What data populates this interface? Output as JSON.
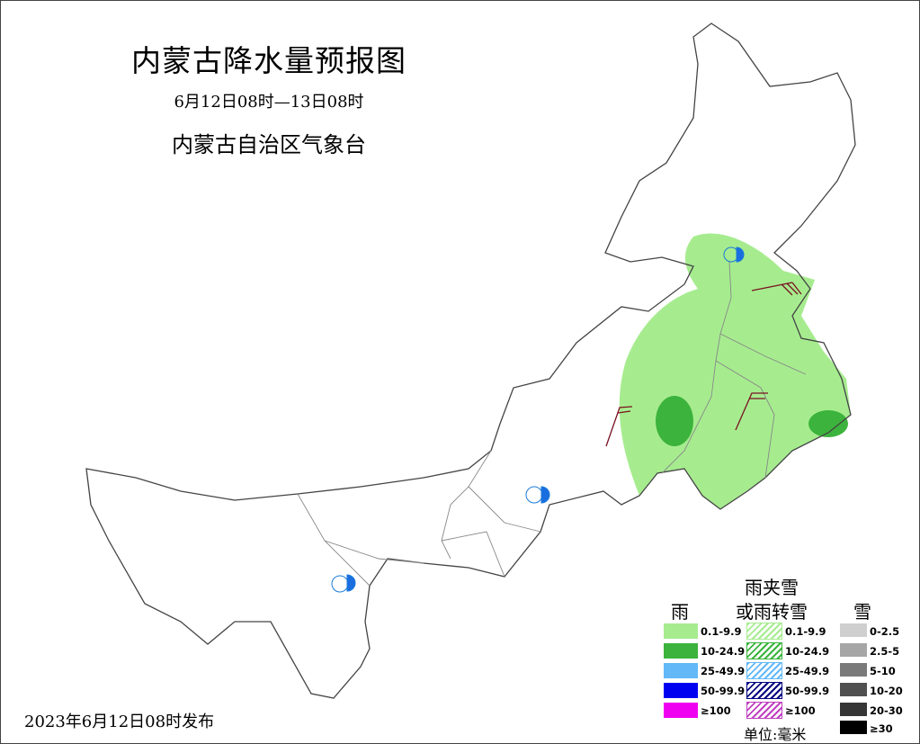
{
  "header": {
    "title": "内蒙古降水量预报图",
    "period": "6月12日08时—13日08时",
    "issuer": "内蒙古自治区气象台"
  },
  "footer": {
    "issued": "2023年6月12日08时发布"
  },
  "legend": {
    "rain": {
      "title": "雨",
      "items": [
        {
          "label": "0.1-9.9",
          "color": "#a6ec8f"
        },
        {
          "label": "10-24.9",
          "color": "#3cb33c"
        },
        {
          "label": "25-49.9",
          "color": "#63b8f8"
        },
        {
          "label": "50-99.9",
          "color": "#0000f0"
        },
        {
          "label": "≥100",
          "color": "#f000f0"
        }
      ]
    },
    "sleet": {
      "title_line1": "雨夹雪",
      "title_line2": "或雨转雪",
      "items": [
        {
          "label": "0.1-9.9",
          "color": "#a6ec8f"
        },
        {
          "label": "10-24.9",
          "color": "#3cb33c"
        },
        {
          "label": "25-49.9",
          "color": "#63b8f8"
        },
        {
          "label": "50-99.9",
          "color": "#000080"
        },
        {
          "label": "≥100",
          "color": "#c040c0"
        }
      ]
    },
    "snow": {
      "title": "雪",
      "items": [
        {
          "label": "0-2.5",
          "color": "#cfcfcf"
        },
        {
          "label": "2.5-5",
          "color": "#a6a6a6"
        },
        {
          "label": "5-10",
          "color": "#7a7a7a"
        },
        {
          "label": "10-20",
          "color": "#505050"
        },
        {
          "label": "20-30",
          "color": "#363636"
        },
        {
          "label": "≥30",
          "color": "#000000"
        }
      ]
    },
    "unit": "单位:毫米"
  },
  "map": {
    "precip_areas": [
      {
        "category": "0.1-9.9",
        "color": "#a6ec8f"
      },
      {
        "category": "10-24.9",
        "color": "#3cb33c"
      }
    ],
    "symbols": [
      "thunderstorm-symbol",
      "wind-barb"
    ]
  }
}
